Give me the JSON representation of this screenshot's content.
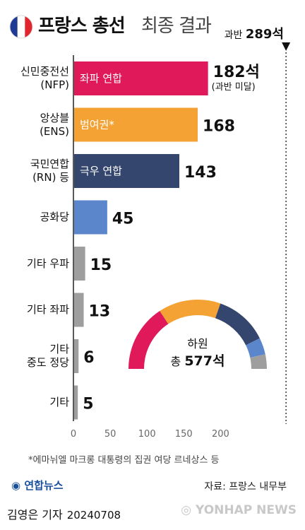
{
  "title": "프랑스 총선",
  "subtitle": "최종 결과",
  "majority": {
    "prefix": "과반",
    "value": "289석"
  },
  "chart_data": {
    "type": "bar",
    "orientation": "horizontal",
    "categories": [
      "신민중전선\n(NFP)",
      "앙상블\n(ENS)",
      "국민연합\n(RN) 등",
      "공화당",
      "기타 우파",
      "기타 좌파",
      "기타\n중도 정당",
      "기타"
    ],
    "values": [
      182,
      168,
      143,
      45,
      15,
      13,
      6,
      5
    ],
    "bar_labels": [
      "좌파 연합",
      "범여권*",
      "극우 연합",
      "",
      "",
      "",
      "",
      ""
    ],
    "value_labels": [
      "182석",
      "168",
      "143",
      "45",
      "15",
      "13",
      "6",
      "5"
    ],
    "value_notes": [
      "(과반 미달)",
      "",
      "",
      "",
      "",
      "",
      "",
      ""
    ],
    "colors": [
      "#e0195a",
      "#f4a234",
      "#34456e",
      "#5b86cc",
      "#9e9e9e",
      "#9e9e9e",
      "#9e9e9e",
      "#9e9e9e"
    ],
    "xlim": [
      0,
      289
    ],
    "xticks": [
      0,
      50,
      100,
      150,
      200
    ],
    "reference_line": 289
  },
  "hemicycle": {
    "label_line1": "하원",
    "label_line2_prefix": "총 ",
    "label_line2_value": "577석",
    "segments": [
      182,
      168,
      143,
      45,
      39
    ],
    "colors": [
      "#e0195a",
      "#f4a234",
      "#34456e",
      "#5b86cc",
      "#9e9e9e"
    ]
  },
  "footnote": "*에마뉘엘 마크롱 대통령의 집권 여당 르네상스 등",
  "source": "자료: 프랑스 내무부",
  "logo": "연합뉴스",
  "byline": {
    "author": "김영은 기자",
    "date": "20240708"
  },
  "watermark": "YONHAP NEWS",
  "flag_colors": [
    "#1f3a93",
    "#ffffff",
    "#e1252f"
  ]
}
